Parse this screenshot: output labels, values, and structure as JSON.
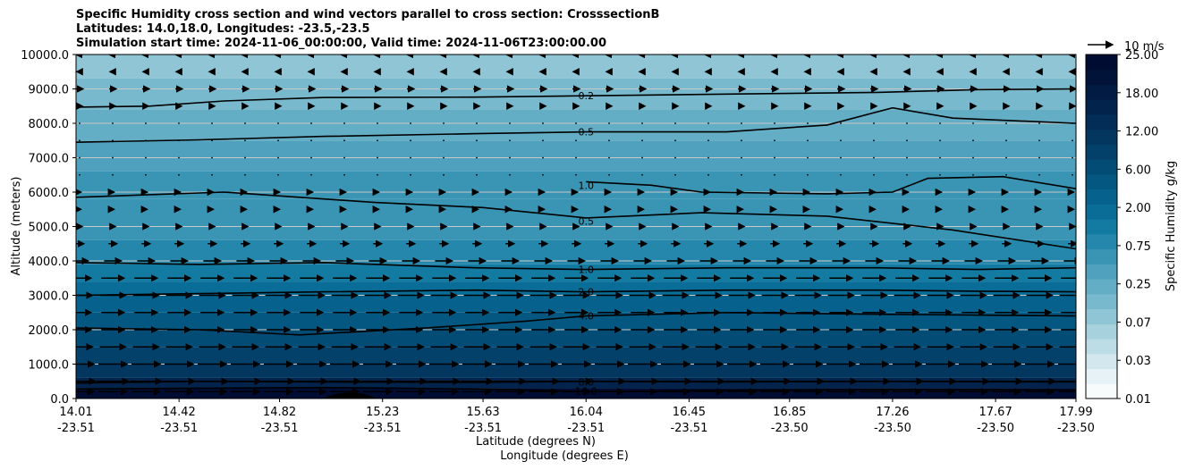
{
  "title_lines": [
    "Specific Humidity cross section and wind vectors parallel to cross section: CrosssectionB",
    "Latitudes: 14.0,18.0, Longitudes: -23.5,-23.5",
    "Simulation start time: 2024-11-06_00:00:00, Valid time: 2024-11-06T23:00:00.00"
  ],
  "chart_data": {
    "type": "heatmap",
    "subtype": "filled contour cross section with contour lines and wind vectors",
    "title": "Specific Humidity cross section and wind vectors parallel to cross section: CrosssectionB",
    "ylabel": "Altitude (meters)",
    "xlabel_lines": [
      "Latitude (degrees N)",
      "Longitude (degrees E)"
    ],
    "ylim": [
      0,
      10000
    ],
    "yticks": [
      0,
      1000,
      2000,
      3000,
      4000,
      5000,
      6000,
      7000,
      8000,
      9000,
      10000
    ],
    "ytick_labels": [
      "0.0",
      "1000.0",
      "2000.0",
      "3000.0",
      "4000.0",
      "5000.0",
      "6000.0",
      "7000.0",
      "8000.0",
      "9000.0",
      "10000.0"
    ],
    "xlim": [
      14.01,
      17.99
    ],
    "xticks": [
      {
        "lat": "14.01",
        "lon": "-23.51"
      },
      {
        "lat": "14.42",
        "lon": "-23.51"
      },
      {
        "lat": "14.82",
        "lon": "-23.51"
      },
      {
        "lat": "15.23",
        "lon": "-23.51"
      },
      {
        "lat": "15.63",
        "lon": "-23.51"
      },
      {
        "lat": "16.04",
        "lon": "-23.51"
      },
      {
        "lat": "16.45",
        "lon": "-23.51"
      },
      {
        "lat": "16.85",
        "lon": "-23.50"
      },
      {
        "lat": "17.26",
        "lon": "-23.50"
      },
      {
        "lat": "17.67",
        "lon": "-23.50"
      },
      {
        "lat": "17.99",
        "lon": "-23.50"
      }
    ],
    "grid": "horizontal",
    "colorbar": {
      "label": "Specific Humidity g/kg",
      "levels": [
        0.01,
        0.02,
        0.03,
        0.05,
        0.07,
        0.1,
        0.25,
        0.35,
        0.5,
        0.75,
        1.0,
        1.5,
        2.0,
        3.0,
        4.0,
        5.0,
        6.0,
        8.0,
        10.0,
        12.0,
        15.0,
        18.0,
        20.0,
        25.0
      ],
      "tick_labels": [
        "0.01",
        "0.03",
        "0.07",
        "0.25",
        "0.75",
        "2.00",
        "6.00",
        "12.00",
        "18.00",
        "25.00"
      ],
      "colors": [
        "#f7fbfc",
        "#e6f2f5",
        "#d2e8ee",
        "#bcdde6",
        "#a6d1dd",
        "#8fc5d5",
        "#79b9cd",
        "#63adc5",
        "#4fa1bd",
        "#3a94b4",
        "#2587ab",
        "#137aa1",
        "#0a6d97",
        "#06628c",
        "#045781",
        "#034c76",
        "#03416b",
        "#033760",
        "#032d56",
        "#02244c",
        "#021b43",
        "#02133a",
        "#010c32"
      ],
      "legend_position": "right"
    },
    "humidity_layers": [
      {
        "z_min": 0,
        "z_max": 300,
        "value": 20.0
      },
      {
        "z_min": 300,
        "z_max": 600,
        "value": 12.0
      },
      {
        "z_min": 600,
        "z_max": 1000,
        "value": 8.0
      },
      {
        "z_min": 1000,
        "z_max": 1500,
        "value": 6.0
      },
      {
        "z_min": 1500,
        "z_max": 2000,
        "value": 5.0
      },
      {
        "z_min": 2000,
        "z_max": 2500,
        "value": 4.0
      },
      {
        "z_min": 2500,
        "z_max": 3000,
        "value": 3.0
      },
      {
        "z_min": 3000,
        "z_max": 3400,
        "value": 2.0
      },
      {
        "z_min": 3400,
        "z_max": 3900,
        "value": 1.5
      },
      {
        "z_min": 3900,
        "z_max": 4600,
        "value": 1.0
      },
      {
        "z_min": 4600,
        "z_max": 5800,
        "value": 0.75
      },
      {
        "z_min": 5800,
        "z_max": 6600,
        "value": 0.75
      },
      {
        "z_min": 6600,
        "z_max": 7500,
        "value": 0.5
      },
      {
        "z_min": 7500,
        "z_max": 8400,
        "value": 0.35
      },
      {
        "z_min": 8400,
        "z_max": 9300,
        "value": 0.25
      },
      {
        "z_min": 9300,
        "z_max": 10000,
        "value": 0.1
      }
    ],
    "contours": [
      {
        "level": "0.2",
        "points": [
          [
            14.01,
            8470
          ],
          [
            14.3,
            8500
          ],
          [
            14.6,
            8650
          ],
          [
            15.0,
            8750
          ],
          [
            15.6,
            8760
          ],
          [
            16.04,
            8800
          ],
          [
            16.6,
            8850
          ],
          [
            17.2,
            8900
          ],
          [
            17.6,
            8980
          ],
          [
            17.99,
            9000
          ]
        ],
        "label_at": [
          16.04,
          8800
        ]
      },
      {
        "level": "0.5",
        "points": [
          [
            14.01,
            7450
          ],
          [
            14.5,
            7520
          ],
          [
            15.0,
            7620
          ],
          [
            15.6,
            7700
          ],
          [
            16.04,
            7750
          ],
          [
            16.6,
            7750
          ],
          [
            17.0,
            7950
          ],
          [
            17.26,
            8450
          ],
          [
            17.5,
            8150
          ],
          [
            17.99,
            8000
          ]
        ],
        "label_at": [
          16.04,
          7750
        ]
      },
      {
        "level": "1.0",
        "points": [
          [
            16.04,
            6300
          ],
          [
            16.3,
            6200
          ],
          [
            16.5,
            6000
          ],
          [
            17.0,
            5950
          ],
          [
            17.26,
            6000
          ],
          [
            17.4,
            6400
          ],
          [
            17.7,
            6450
          ],
          [
            17.99,
            6100
          ]
        ],
        "label_at": [
          16.04,
          6200
        ]
      },
      {
        "level": "0.5",
        "points": [
          [
            14.01,
            5850
          ],
          [
            14.6,
            6000
          ],
          [
            15.2,
            5700
          ],
          [
            15.63,
            5550
          ],
          [
            16.04,
            5250
          ],
          [
            16.5,
            5400
          ],
          [
            17.0,
            5300
          ],
          [
            17.5,
            4900
          ],
          [
            17.99,
            4350
          ]
        ],
        "label_at": [
          16.04,
          5150
        ]
      },
      {
        "level": "1.0",
        "points": [
          [
            14.01,
            3950
          ],
          [
            14.5,
            3900
          ],
          [
            15.0,
            3950
          ],
          [
            15.6,
            3800
          ],
          [
            16.04,
            3750
          ],
          [
            16.6,
            3800
          ],
          [
            17.2,
            3800
          ],
          [
            17.6,
            3750
          ],
          [
            17.99,
            3800
          ]
        ],
        "label_at": [
          16.04,
          3750
        ]
      },
      {
        "level": "2.0",
        "points": [
          [
            14.01,
            3000
          ],
          [
            14.5,
            3050
          ],
          [
            15.0,
            3100
          ],
          [
            15.6,
            3150
          ],
          [
            16.04,
            3100
          ],
          [
            16.6,
            3150
          ],
          [
            17.2,
            3150
          ],
          [
            17.6,
            3120
          ],
          [
            17.99,
            3100
          ]
        ],
        "label_at": [
          16.04,
          3100
        ]
      },
      {
        "level": "4.0",
        "points": [
          [
            14.01,
            2050
          ],
          [
            14.5,
            2000
          ],
          [
            14.9,
            1850
          ],
          [
            15.4,
            2050
          ],
          [
            15.8,
            2250
          ],
          [
            16.04,
            2400
          ],
          [
            16.6,
            2500
          ],
          [
            17.2,
            2450
          ],
          [
            17.99,
            2400
          ]
        ],
        "label_at": [
          16.04,
          2400
        ]
      },
      {
        "level": "8.0",
        "points": [
          [
            14.01,
            450
          ],
          [
            14.5,
            500
          ],
          [
            15.0,
            480
          ],
          [
            15.6,
            470
          ],
          [
            16.04,
            500
          ],
          [
            16.6,
            480
          ],
          [
            17.2,
            500
          ],
          [
            17.99,
            480
          ]
        ],
        "label_at": [
          16.04,
          480
        ]
      },
      {
        "level": "16.0",
        "points": [
          [
            14.01,
            280
          ],
          [
            14.5,
            300
          ],
          [
            15.0,
            320
          ],
          [
            15.6,
            280
          ],
          [
            16.04,
            200
          ],
          [
            16.6,
            240
          ],
          [
            17.2,
            260
          ],
          [
            17.99,
            250
          ]
        ],
        "label_at": [
          16.04,
          220
        ]
      }
    ],
    "wind_reference": {
      "label": "10 m/s",
      "speed": 10
    },
    "wind_rows": [
      {
        "z": 200,
        "u": 10
      },
      {
        "z": 500,
        "u": 11
      },
      {
        "z": 1000,
        "u": 10
      },
      {
        "z": 1500,
        "u": 9
      },
      {
        "z": 2000,
        "u": 8
      },
      {
        "z": 2500,
        "u": 8
      },
      {
        "z": 3000,
        "u": 9
      },
      {
        "z": 3500,
        "u": 8
      },
      {
        "z": 4000,
        "u": 6
      },
      {
        "z": 4500,
        "u": 3
      },
      {
        "z": 5000,
        "u": 2
      },
      {
        "z": 5500,
        "u": 1
      },
      {
        "z": 6000,
        "u": 1
      },
      {
        "z": 6500,
        "u": 0.3
      },
      {
        "z": 7000,
        "u": 0.2
      },
      {
        "z": 7500,
        "u": 0.3
      },
      {
        "z": 8000,
        "u": 0.2
      },
      {
        "z": 8500,
        "u": 2
      },
      {
        "z": 9000,
        "u": 2.5
      },
      {
        "z": 9500,
        "u": -2
      },
      {
        "z": 10000,
        "u": -2.5
      }
    ],
    "terrain_peak": {
      "lat": 15.1,
      "height": 200
    }
  }
}
